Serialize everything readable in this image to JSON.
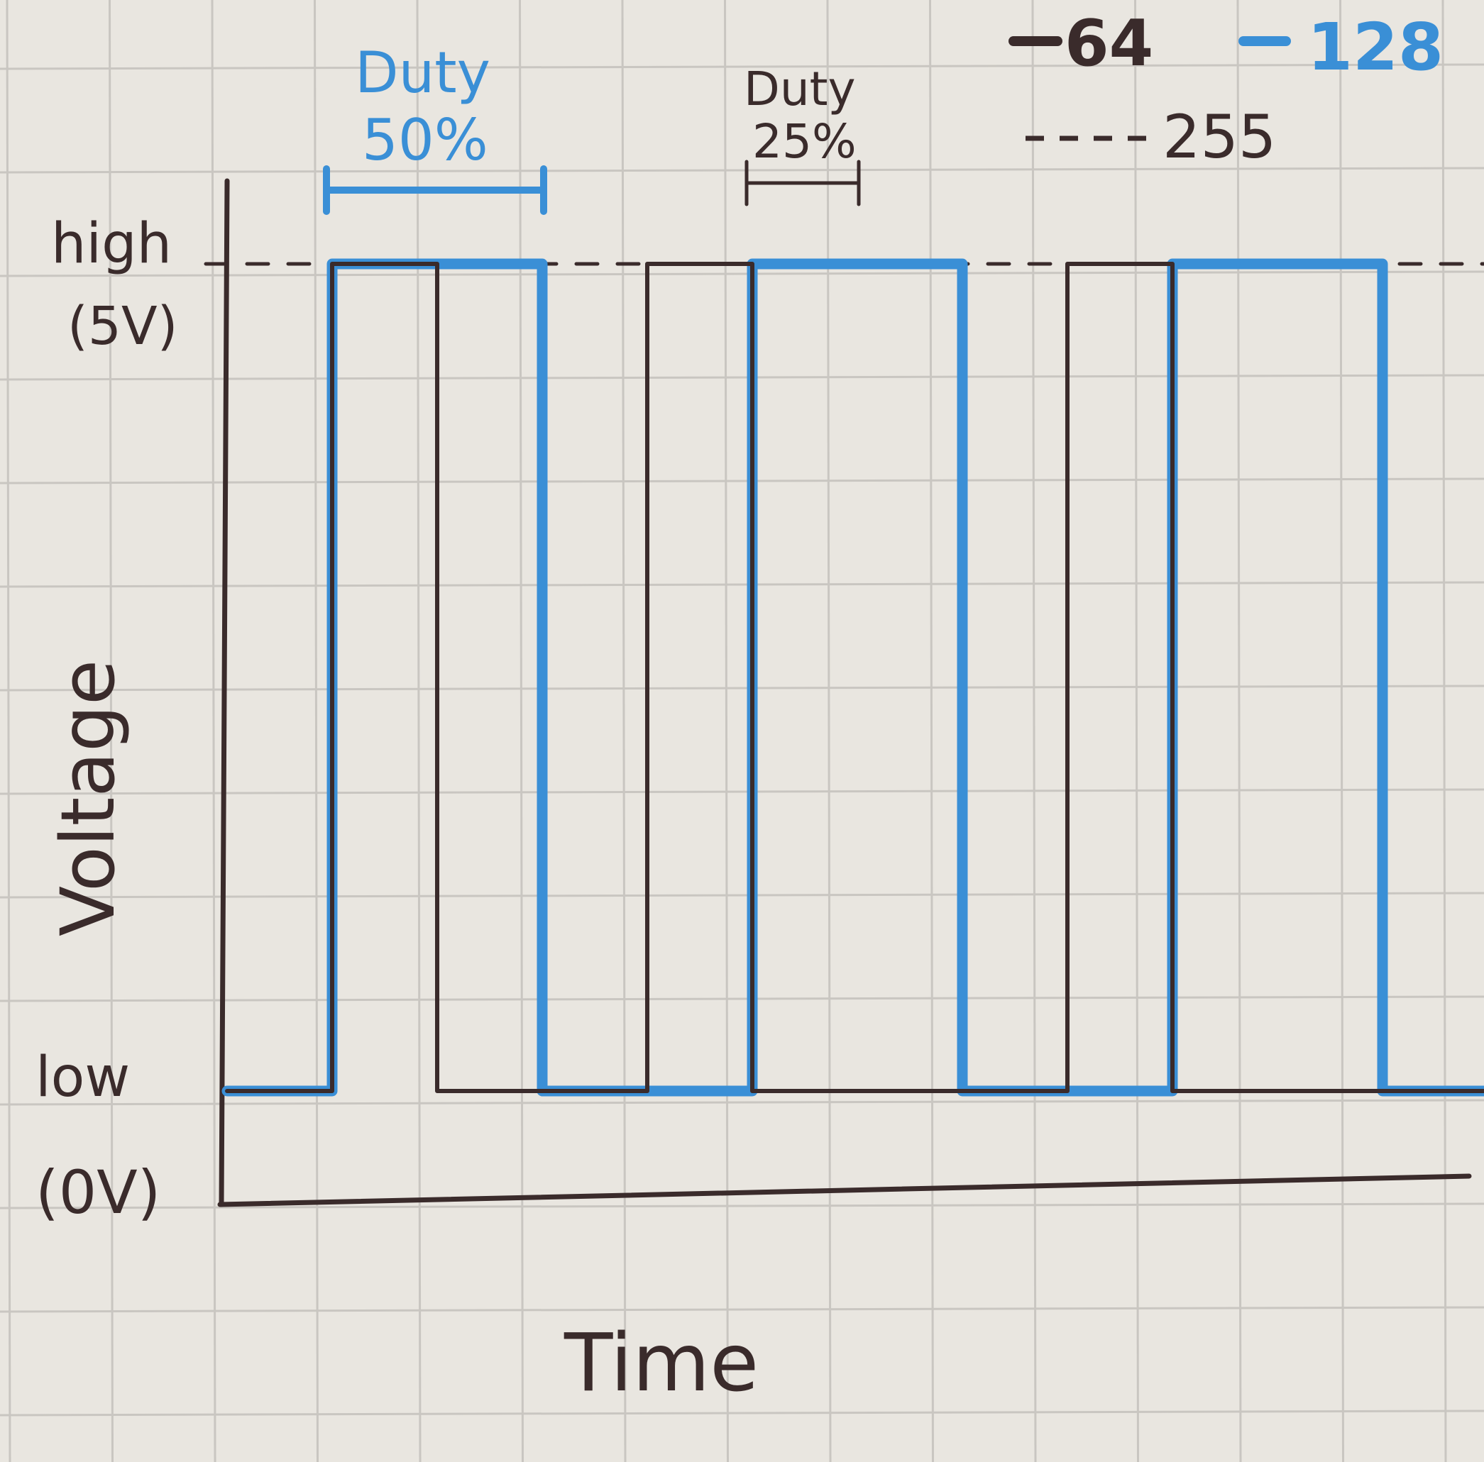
{
  "colors": {
    "paper": "#e9e6e0",
    "grid": "#c9c6c1",
    "ink": "#3a2b2b",
    "blue": "#3a8fd6"
  },
  "chart_data": {
    "type": "line",
    "xlabel": "Time",
    "ylabel": "Voltage",
    "y_ticks": [
      {
        "value": 1,
        "line1": "high",
        "line2": "(5V)"
      },
      {
        "value": 0,
        "line1": "low",
        "line2": "(0V)"
      }
    ],
    "ylim": [
      0,
      1
    ],
    "legend_position": "top-right",
    "grid": true,
    "annotations": [
      {
        "label_line1": "Duty",
        "label_line2": "50%",
        "color": "blue",
        "x_start": 1,
        "x_end": 3
      },
      {
        "label_line1": "Duty",
        "label_line2": "25%",
        "color": "ink",
        "x_start": 5,
        "x_end": 6
      }
    ],
    "series": [
      {
        "name": "64",
        "color": "ink",
        "style": "solid",
        "x": [
          0,
          1,
          1,
          2,
          2,
          4,
          4,
          5,
          5,
          8,
          8,
          9,
          9,
          12
        ],
        "y": [
          0,
          0,
          1,
          1,
          0,
          0,
          1,
          1,
          0,
          0,
          1,
          1,
          0,
          0
        ]
      },
      {
        "name": "128",
        "color": "blue",
        "style": "solid",
        "x": [
          0,
          1,
          1,
          3,
          3,
          5,
          5,
          7,
          7,
          9,
          9,
          11,
          11,
          12
        ],
        "y": [
          0,
          0,
          1,
          1,
          0,
          0,
          1,
          1,
          0,
          0,
          1,
          1,
          0,
          0
        ]
      },
      {
        "name": "255",
        "color": "ink",
        "style": "dashed",
        "x": [
          0,
          12
        ],
        "y": [
          1,
          1
        ]
      }
    ]
  }
}
